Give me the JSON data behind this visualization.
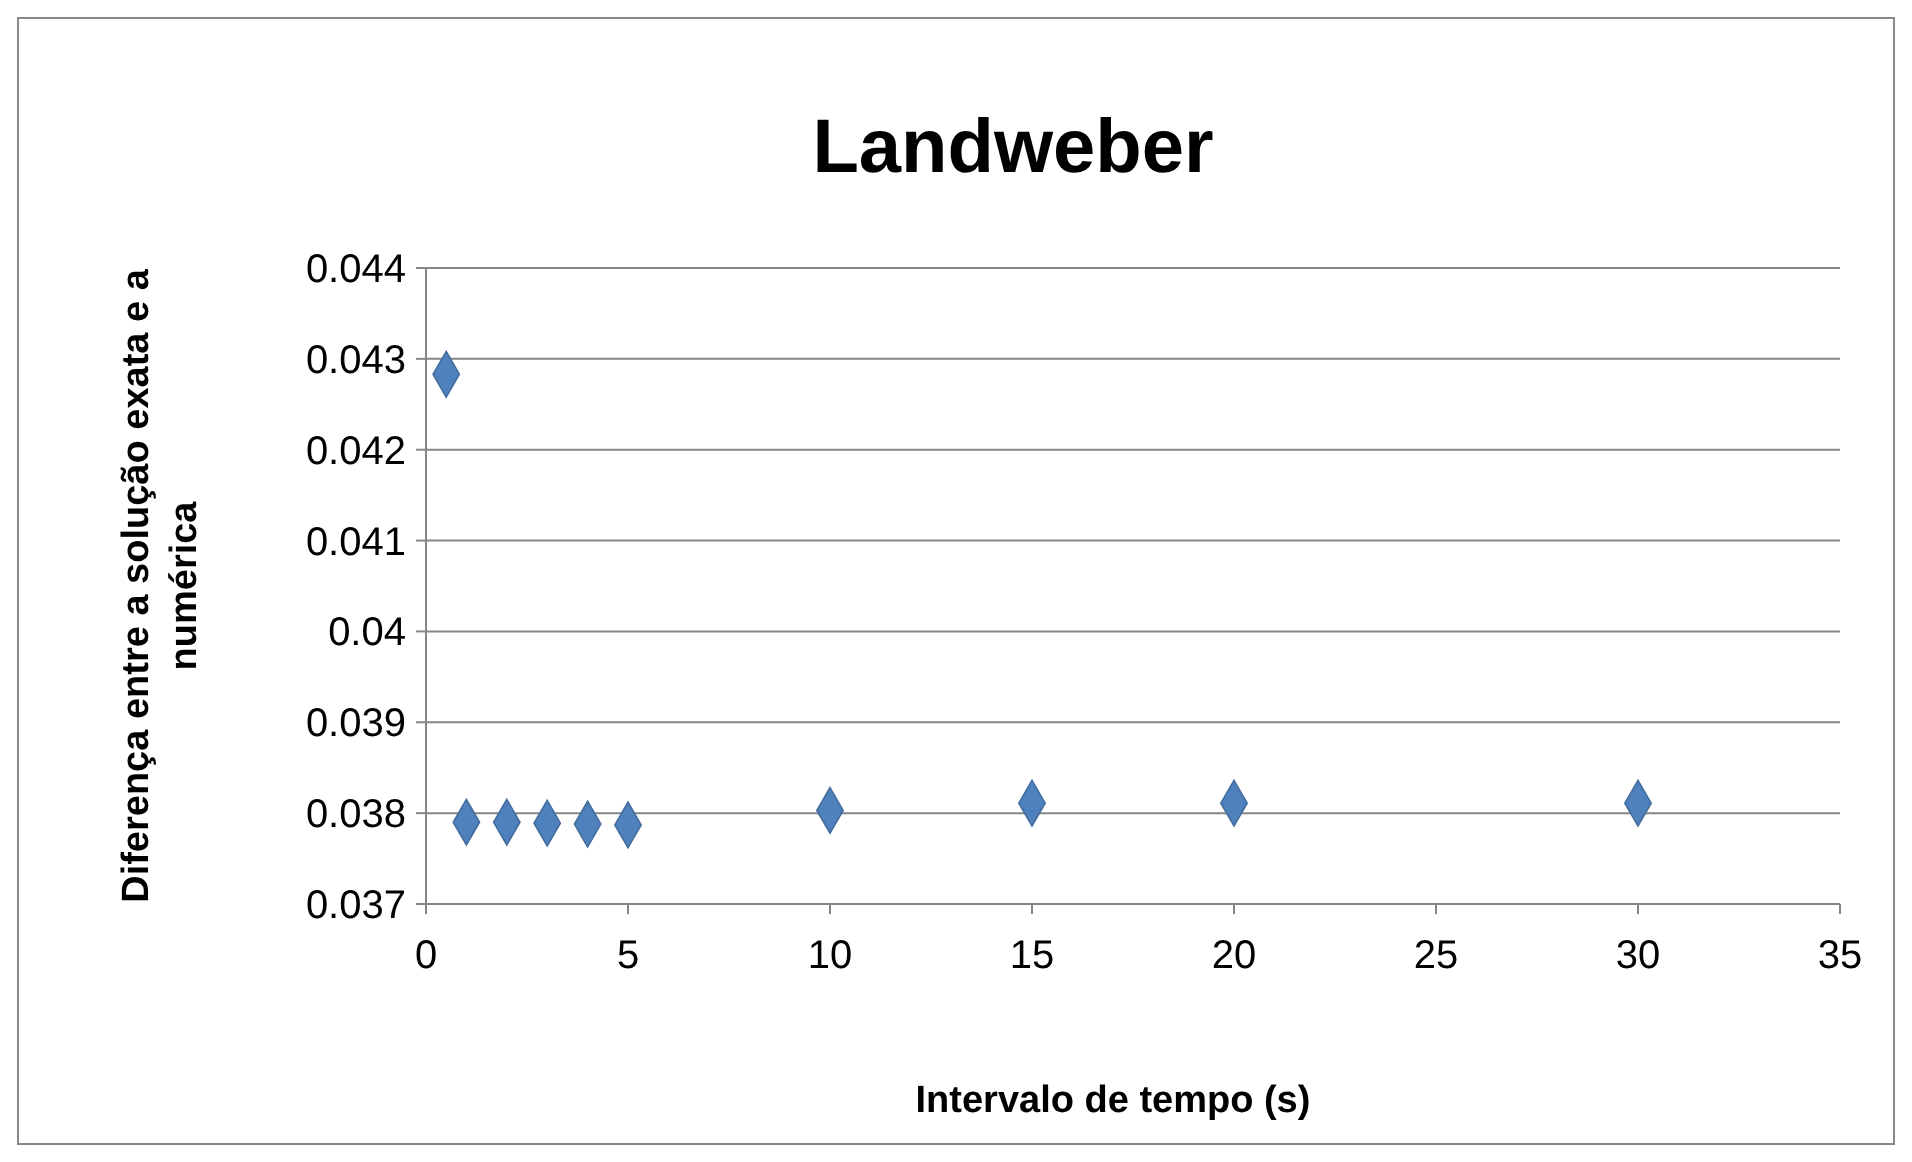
{
  "chart_data": {
    "type": "scatter",
    "title": "Landweber",
    "xlabel": "Intervalo de tempo (s)",
    "ylabel": "Diferença entre  a solução exata e a numérica",
    "x": [
      0.5,
      1,
      2,
      3,
      4,
      5,
      10,
      15,
      20,
      30
    ],
    "series": [
      {
        "color": "#4f81bd",
        "values": [
          0.04283,
          0.0379,
          0.0379,
          0.03789,
          0.03788,
          0.03787,
          0.03803,
          0.03811,
          0.03811,
          0.03811
        ]
      }
    ],
    "xlim": [
      0,
      35
    ],
    "xticks": [
      0,
      5,
      10,
      15,
      20,
      25,
      30,
      35
    ],
    "ylim": [
      0.037,
      0.044
    ],
    "yticks": [
      0.037,
      0.038,
      0.039,
      0.04,
      0.041,
      0.042,
      0.043,
      0.044
    ],
    "grid": "y",
    "marker": "diamond"
  }
}
